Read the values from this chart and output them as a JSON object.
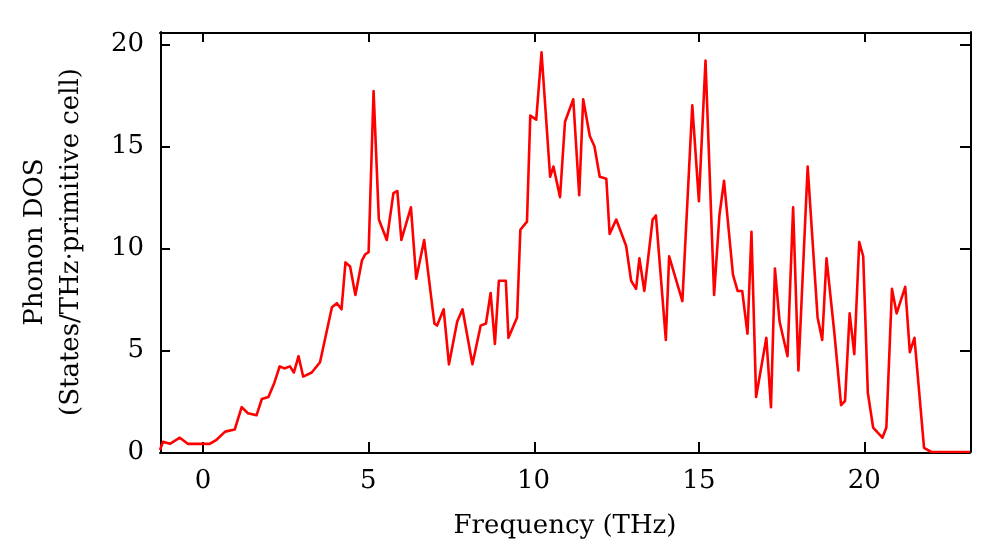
{
  "chart_data": {
    "type": "line",
    "xlabel": "Frequency (THz)",
    "ylabel": "Phonon DOS\n(States/THz·primitive cell)",
    "xlim": [
      -1.3,
      23.2
    ],
    "ylim": [
      0,
      20.6
    ],
    "xticks": [
      0,
      5,
      10,
      15,
      20
    ],
    "yticks": [
      0,
      5,
      10,
      15,
      20
    ],
    "grid": false,
    "marker": "none",
    "line_style": "solid",
    "series": [
      {
        "color": "#ff0000",
        "x": [
          -1.3,
          -1.21,
          -1.0,
          -0.7,
          -0.46,
          0.2,
          0.41,
          0.67,
          0.96,
          1.17,
          1.36,
          1.62,
          1.78,
          1.98,
          2.16,
          2.32,
          2.46,
          2.63,
          2.75,
          2.89,
          3.03,
          3.29,
          3.54,
          3.9,
          4.05,
          4.19,
          4.31,
          4.45,
          4.61,
          4.81,
          4.91,
          5.01,
          5.16,
          5.32,
          5.56,
          5.76,
          5.88,
          6.0,
          6.29,
          6.45,
          6.69,
          7.0,
          7.08,
          7.28,
          7.44,
          7.69,
          7.85,
          8.15,
          8.4,
          8.56,
          8.7,
          8.83,
          8.95,
          9.16,
          9.24,
          9.5,
          9.6,
          9.8,
          9.9,
          10.08,
          10.24,
          10.5,
          10.6,
          10.8,
          10.95,
          11.2,
          11.38,
          11.5,
          11.7,
          11.84,
          12.0,
          12.2,
          12.3,
          12.5,
          12.8,
          12.95,
          13.1,
          13.2,
          13.35,
          13.6,
          13.7,
          14.0,
          14.1,
          14.5,
          14.8,
          15.0,
          15.2,
          15.46,
          15.62,
          15.76,
          16.03,
          16.17,
          16.31,
          16.47,
          16.59,
          16.73,
          17.04,
          17.18,
          17.3,
          17.44,
          17.68,
          17.85,
          18.01,
          18.29,
          18.59,
          18.73,
          18.86,
          19.1,
          19.3,
          19.42,
          19.56,
          19.7,
          19.85,
          19.97,
          20.11,
          20.27,
          20.55,
          20.67,
          20.84,
          20.98,
          21.24,
          21.38,
          21.52,
          21.81,
          22.03,
          23.2
        ],
        "values": [
          0.1,
          0.5,
          0.4,
          0.7,
          0.4,
          0.4,
          0.6,
          1.0,
          1.1,
          2.2,
          1.9,
          1.8,
          2.6,
          2.7,
          3.4,
          4.2,
          4.1,
          4.2,
          3.9,
          4.7,
          3.7,
          3.9,
          4.4,
          7.1,
          7.3,
          7.0,
          9.3,
          9.1,
          7.7,
          9.4,
          9.7,
          9.8,
          17.7,
          11.4,
          10.4,
          12.7,
          12.8,
          10.4,
          12.0,
          8.5,
          10.4,
          6.3,
          6.2,
          7.0,
          4.3,
          6.4,
          7.0,
          4.3,
          6.2,
          6.3,
          7.8,
          5.3,
          8.4,
          8.4,
          5.6,
          6.6,
          10.9,
          11.3,
          16.5,
          16.3,
          19.6,
          13.5,
          14.0,
          12.5,
          16.2,
          17.3,
          12.6,
          17.3,
          15.5,
          15.0,
          13.5,
          13.4,
          10.7,
          11.4,
          10.1,
          8.4,
          8.0,
          9.5,
          7.9,
          11.4,
          11.6,
          5.5,
          9.6,
          7.4,
          17.0,
          12.3,
          19.2,
          7.7,
          11.6,
          13.3,
          8.7,
          7.9,
          7.9,
          5.8,
          10.8,
          2.7,
          5.6,
          2.2,
          9.0,
          6.4,
          4.7,
          12.0,
          4.0,
          14.0,
          6.6,
          5.5,
          9.5,
          5.8,
          2.3,
          2.5,
          6.8,
          4.8,
          10.3,
          9.6,
          2.9,
          1.2,
          0.7,
          1.2,
          8.0,
          6.8,
          8.1,
          4.9,
          5.6,
          0.2,
          0,
          0
        ]
      }
    ]
  }
}
